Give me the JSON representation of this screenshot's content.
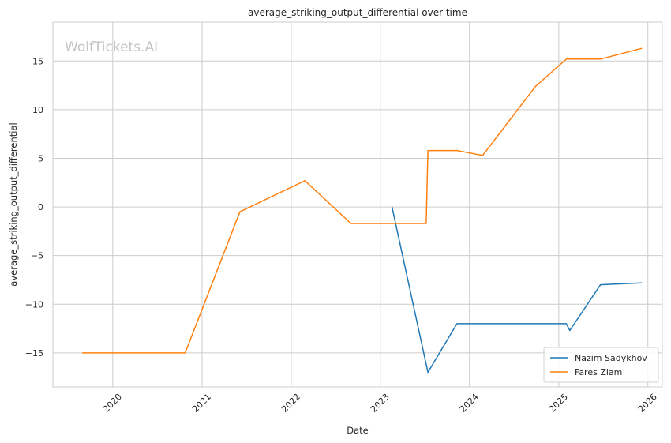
{
  "chart_data": {
    "type": "line",
    "title": "average_striking_output_differential over time",
    "xlabel": "Date",
    "ylabel": "average_striking_output_differential",
    "watermark": "WolfTickets.AI",
    "xlim": [
      "2019-05-01",
      "2026-03-01"
    ],
    "ylim": [
      -18.5,
      19
    ],
    "x_ticks": [
      {
        "date": "2020-01-01",
        "label": "2020"
      },
      {
        "date": "2021-01-01",
        "label": "2021"
      },
      {
        "date": "2022-01-01",
        "label": "2022"
      },
      {
        "date": "2023-01-01",
        "label": "2023"
      },
      {
        "date": "2024-01-01",
        "label": "2024"
      },
      {
        "date": "2025-01-01",
        "label": "2025"
      },
      {
        "date": "2026-01-01",
        "label": "2026"
      }
    ],
    "y_ticks": [
      {
        "value": 15,
        "label": "15"
      },
      {
        "value": 10,
        "label": "10"
      },
      {
        "value": 5,
        "label": "5"
      },
      {
        "value": 0,
        "label": "0"
      },
      {
        "value": -5,
        "label": "−5"
      },
      {
        "value": -10,
        "label": "−10"
      },
      {
        "value": -15,
        "label": "−15"
      }
    ],
    "grid": true,
    "legend_position": "lower-right",
    "series": [
      {
        "name": "Nazim Sadykhov",
        "color": "#1f77b4",
        "points": [
          {
            "x": "2023-02-18",
            "y": 0.0
          },
          {
            "x": "2023-07-15",
            "y": -17.0
          },
          {
            "x": "2023-11-11",
            "y": -12.0
          },
          {
            "x": "2025-02-01",
            "y": -12.0
          },
          {
            "x": "2025-02-15",
            "y": -12.7
          },
          {
            "x": "2025-06-21",
            "y": -8.0
          },
          {
            "x": "2025-12-06",
            "y": -7.8
          }
        ]
      },
      {
        "name": "Fares Ziam",
        "color": "#ff7f0e",
        "points": [
          {
            "x": "2019-08-31",
            "y": -15.0
          },
          {
            "x": "2020-10-24",
            "y": -15.0
          },
          {
            "x": "2021-06-05",
            "y": -0.5
          },
          {
            "x": "2022-02-26",
            "y": 2.7
          },
          {
            "x": "2022-09-03",
            "y": -1.7
          },
          {
            "x": "2023-07-08",
            "y": -1.7
          },
          {
            "x": "2023-07-15",
            "y": 5.8
          },
          {
            "x": "2023-11-11",
            "y": 5.8
          },
          {
            "x": "2024-02-24",
            "y": 5.3
          },
          {
            "x": "2024-09-28",
            "y": 12.4
          },
          {
            "x": "2025-02-01",
            "y": 15.2
          },
          {
            "x": "2025-06-21",
            "y": 15.2
          },
          {
            "x": "2025-12-06",
            "y": 16.3
          }
        ]
      }
    ]
  }
}
